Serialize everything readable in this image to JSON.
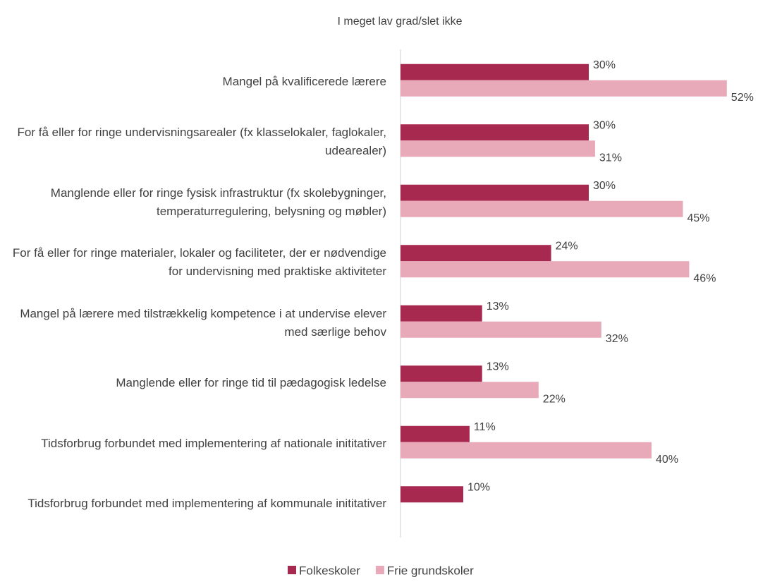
{
  "chart_data": {
    "type": "bar",
    "orientation": "horizontal",
    "title": "I meget lav grad/slet ikke",
    "categories": [
      "Mangel på kvalificerede lærere",
      "For få eller for ringe undervisningsarealer (fx klasselokaler, faglokaler, udearealer)",
      "Manglende eller for ringe fysisk infrastruktur (fx skolebygninger, temperaturregulering, belysning og møbler)",
      "For få eller for ringe materialer, lokaler og faciliteter, der er nødvendige for undervisning med praktiske aktiviteter",
      "Mangel på lærere med tilstrækkelig kompetence i at undervise elever med særlige behov",
      "Manglende eller for ringe tid til pædagogisk ledelse",
      "Tidsforbrug forbundet med implementering af nationale inititativer",
      "Tidsforbrug forbundet med implementering af kommunale inititativer"
    ],
    "series": [
      {
        "name": "Folkeskoler",
        "color": "#a8294f",
        "values": [
          30,
          30,
          30,
          24,
          13,
          13,
          11,
          10
        ],
        "value_labels": [
          "30%",
          "30%",
          "30%",
          "24%",
          "13%",
          "13%",
          "11%",
          "10%"
        ]
      },
      {
        "name": "Frie grundskoler",
        "color": "#e8a9b9",
        "values": [
          52,
          31,
          45,
          46,
          32,
          22,
          40,
          null
        ],
        "value_labels": [
          "52%",
          "31%",
          "45%",
          "46%",
          "32%",
          "22%",
          "40%",
          null
        ]
      }
    ],
    "xlim": [
      0,
      60
    ],
    "legend": "bottom"
  }
}
